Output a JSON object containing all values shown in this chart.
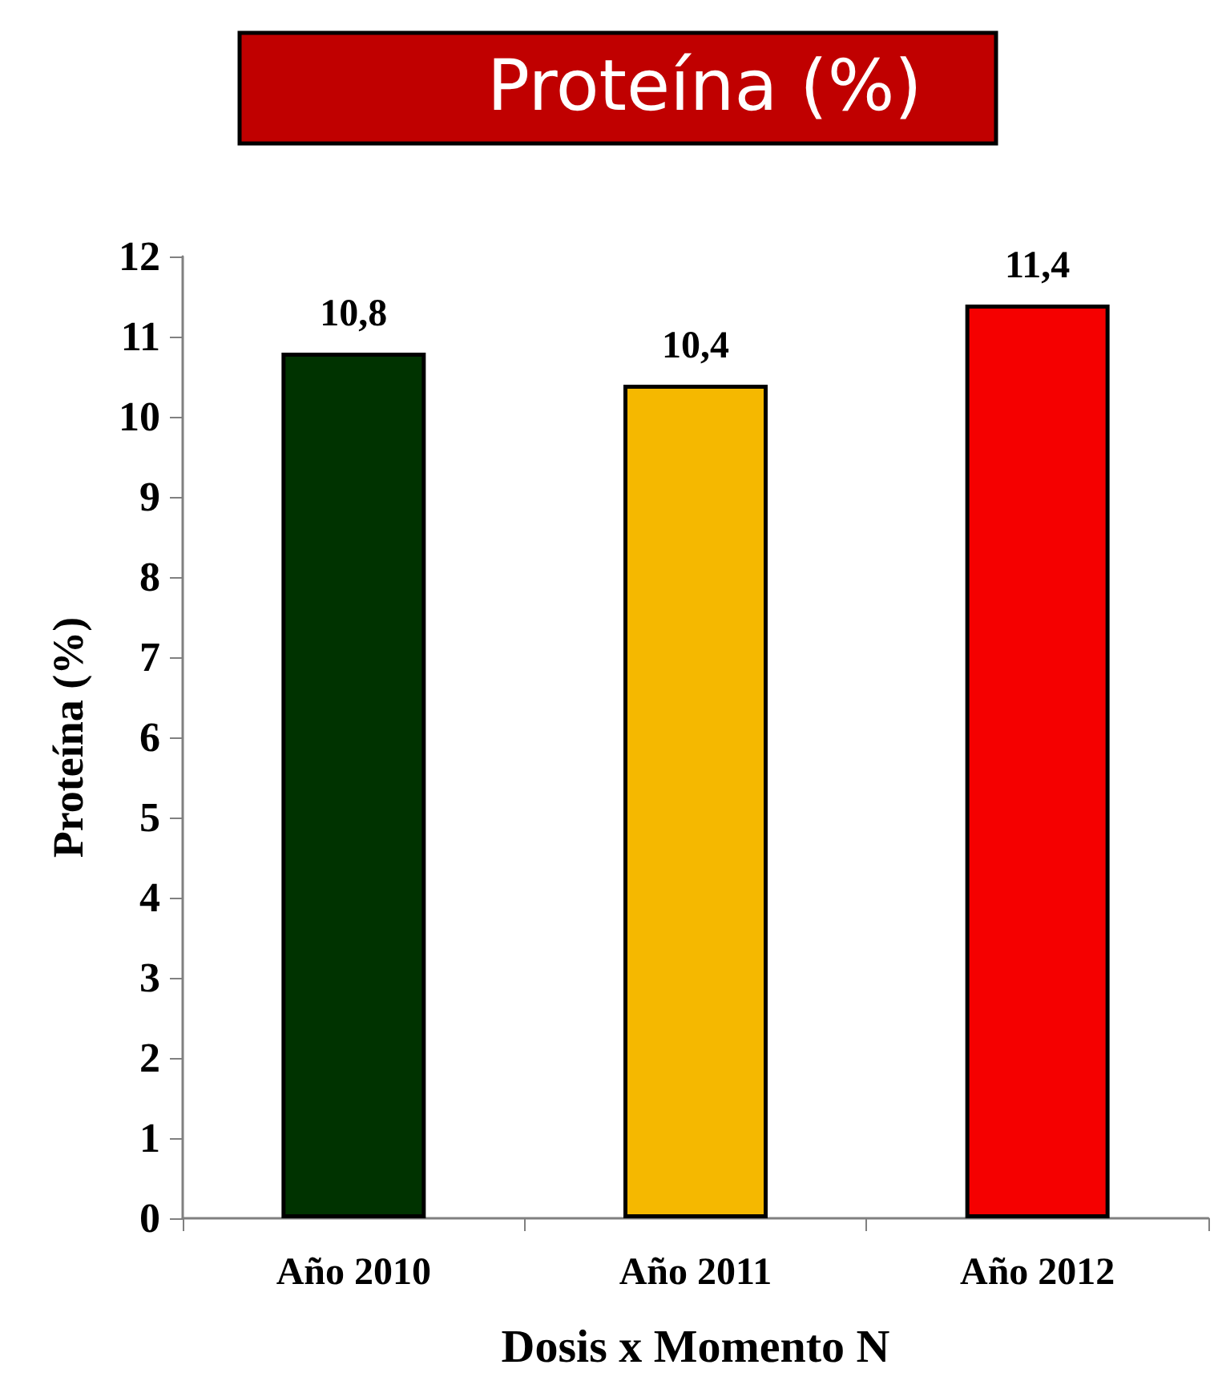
{
  "chart_data": {
    "type": "bar",
    "title": "Proteína (%)",
    "xlabel": "Dosis x Momento N",
    "ylabel": "Proteína (%)",
    "categories": [
      "Año 2010",
      "Año 2011",
      "Año 2012"
    ],
    "values": [
      10.8,
      10.4,
      11.4
    ],
    "colors": [
      "#003300",
      "#f5b800",
      "#f50000"
    ],
    "value_labels": [
      "10,8",
      "10,4",
      "11,4"
    ],
    "ylim": [
      0,
      12
    ],
    "yticks": [
      0,
      1,
      2,
      3,
      4,
      5,
      6,
      7,
      8,
      9,
      10,
      11,
      12
    ]
  }
}
